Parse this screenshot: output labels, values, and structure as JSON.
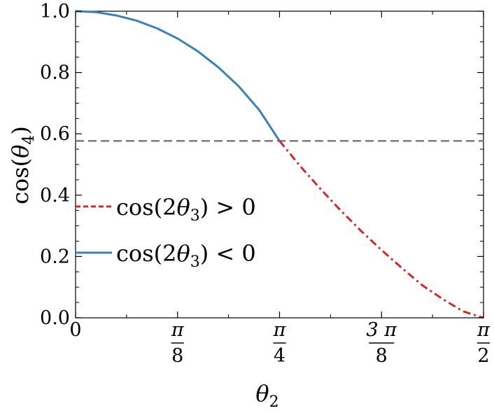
{
  "chart_data": {
    "type": "line",
    "xlabel": {
      "symbol": "θ",
      "subscript": "2"
    },
    "ylabel": {
      "prefix": "cos(",
      "symbol": "θ",
      "subscript": "4",
      "suffix": ")"
    },
    "xlim": [
      0,
      1.5708
    ],
    "ylim": [
      0,
      1
    ],
    "yticks": [
      {
        "value": 0.0,
        "label": "0.0"
      },
      {
        "value": 0.2,
        "label": "0.2"
      },
      {
        "value": 0.4,
        "label": "0.4"
      },
      {
        "value": 0.6,
        "label": "0.6"
      },
      {
        "value": 0.8,
        "label": "0.8"
      },
      {
        "value": 1.0,
        "label": "1.0"
      }
    ],
    "xticks": [
      {
        "value": 0,
        "label": "0"
      },
      {
        "value": 0.3927,
        "numerator": "π",
        "denominator": "8"
      },
      {
        "value": 0.7854,
        "numerator": "π",
        "denominator": "4"
      },
      {
        "value": 1.1781,
        "numerator": "3 π",
        "denominator": "8"
      },
      {
        "value": 1.5708,
        "numerator": "π",
        "denominator": "2"
      }
    ],
    "reference_line": {
      "y": 0.577,
      "style": "dashed",
      "color": "#7f7f7f"
    },
    "series": [
      {
        "name": "cos(2θ3) < 0",
        "legend": {
          "prefix": "cos(2",
          "symbol": "θ",
          "subscript": "3",
          "suffix": ") < 0"
        },
        "color": "#3a80b9",
        "style": "solid",
        "x": [
          0,
          0.0785,
          0.1571,
          0.2356,
          0.3142,
          0.3927,
          0.4712,
          0.5498,
          0.6283,
          0.7069,
          0.7854
        ],
        "y": [
          1.0,
          0.997,
          0.986,
          0.969,
          0.944,
          0.911,
          0.869,
          0.817,
          0.755,
          0.678,
          0.577
        ]
      },
      {
        "name": "cos(2θ3) > 0",
        "legend": {
          "prefix": "cos(2",
          "symbol": "θ",
          "subscript": "3",
          "suffix": ") > 0"
        },
        "color": "#d62728",
        "style": "dashdot",
        "x": [
          0.7854,
          0.8639,
          0.9425,
          1.021,
          1.0996,
          1.1781,
          1.2566,
          1.3352,
          1.4137,
          1.4923,
          1.5708
        ],
        "y": [
          0.577,
          0.496,
          0.421,
          0.35,
          0.283,
          0.221,
          0.162,
          0.106,
          0.061,
          0.021,
          0.0
        ]
      }
    ],
    "grid": false,
    "legend_position": "lower-left"
  }
}
